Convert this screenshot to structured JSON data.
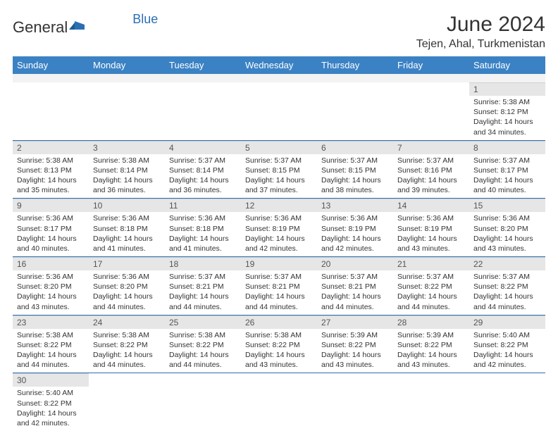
{
  "logo": {
    "general": "General",
    "blue": "Blue"
  },
  "title": "June 2024",
  "location": "Tejen, Ahal, Turkmenistan",
  "colors": {
    "header_bg": "#3b82c4",
    "rule": "#2b6fb3",
    "daynum_bg": "#e6e6e6"
  },
  "weekdays": [
    "Sunday",
    "Monday",
    "Tuesday",
    "Wednesday",
    "Thursday",
    "Friday",
    "Saturday"
  ],
  "weeks": [
    [
      null,
      null,
      null,
      null,
      null,
      null,
      {
        "n": "1",
        "sr": "5:38 AM",
        "ss": "8:12 PM",
        "dl": "14 hours and 34 minutes."
      }
    ],
    [
      {
        "n": "2",
        "sr": "5:38 AM",
        "ss": "8:13 PM",
        "dl": "14 hours and 35 minutes."
      },
      {
        "n": "3",
        "sr": "5:38 AM",
        "ss": "8:14 PM",
        "dl": "14 hours and 36 minutes."
      },
      {
        "n": "4",
        "sr": "5:37 AM",
        "ss": "8:14 PM",
        "dl": "14 hours and 36 minutes."
      },
      {
        "n": "5",
        "sr": "5:37 AM",
        "ss": "8:15 PM",
        "dl": "14 hours and 37 minutes."
      },
      {
        "n": "6",
        "sr": "5:37 AM",
        "ss": "8:15 PM",
        "dl": "14 hours and 38 minutes."
      },
      {
        "n": "7",
        "sr": "5:37 AM",
        "ss": "8:16 PM",
        "dl": "14 hours and 39 minutes."
      },
      {
        "n": "8",
        "sr": "5:37 AM",
        "ss": "8:17 PM",
        "dl": "14 hours and 40 minutes."
      }
    ],
    [
      {
        "n": "9",
        "sr": "5:36 AM",
        "ss": "8:17 PM",
        "dl": "14 hours and 40 minutes."
      },
      {
        "n": "10",
        "sr": "5:36 AM",
        "ss": "8:18 PM",
        "dl": "14 hours and 41 minutes."
      },
      {
        "n": "11",
        "sr": "5:36 AM",
        "ss": "8:18 PM",
        "dl": "14 hours and 41 minutes."
      },
      {
        "n": "12",
        "sr": "5:36 AM",
        "ss": "8:19 PM",
        "dl": "14 hours and 42 minutes."
      },
      {
        "n": "13",
        "sr": "5:36 AM",
        "ss": "8:19 PM",
        "dl": "14 hours and 42 minutes."
      },
      {
        "n": "14",
        "sr": "5:36 AM",
        "ss": "8:19 PM",
        "dl": "14 hours and 43 minutes."
      },
      {
        "n": "15",
        "sr": "5:36 AM",
        "ss": "8:20 PM",
        "dl": "14 hours and 43 minutes."
      }
    ],
    [
      {
        "n": "16",
        "sr": "5:36 AM",
        "ss": "8:20 PM",
        "dl": "14 hours and 43 minutes."
      },
      {
        "n": "17",
        "sr": "5:36 AM",
        "ss": "8:20 PM",
        "dl": "14 hours and 44 minutes."
      },
      {
        "n": "18",
        "sr": "5:37 AM",
        "ss": "8:21 PM",
        "dl": "14 hours and 44 minutes."
      },
      {
        "n": "19",
        "sr": "5:37 AM",
        "ss": "8:21 PM",
        "dl": "14 hours and 44 minutes."
      },
      {
        "n": "20",
        "sr": "5:37 AM",
        "ss": "8:21 PM",
        "dl": "14 hours and 44 minutes."
      },
      {
        "n": "21",
        "sr": "5:37 AM",
        "ss": "8:22 PM",
        "dl": "14 hours and 44 minutes."
      },
      {
        "n": "22",
        "sr": "5:37 AM",
        "ss": "8:22 PM",
        "dl": "14 hours and 44 minutes."
      }
    ],
    [
      {
        "n": "23",
        "sr": "5:38 AM",
        "ss": "8:22 PM",
        "dl": "14 hours and 44 minutes."
      },
      {
        "n": "24",
        "sr": "5:38 AM",
        "ss": "8:22 PM",
        "dl": "14 hours and 44 minutes."
      },
      {
        "n": "25",
        "sr": "5:38 AM",
        "ss": "8:22 PM",
        "dl": "14 hours and 44 minutes."
      },
      {
        "n": "26",
        "sr": "5:38 AM",
        "ss": "8:22 PM",
        "dl": "14 hours and 43 minutes."
      },
      {
        "n": "27",
        "sr": "5:39 AM",
        "ss": "8:22 PM",
        "dl": "14 hours and 43 minutes."
      },
      {
        "n": "28",
        "sr": "5:39 AM",
        "ss": "8:22 PM",
        "dl": "14 hours and 43 minutes."
      },
      {
        "n": "29",
        "sr": "5:40 AM",
        "ss": "8:22 PM",
        "dl": "14 hours and 42 minutes."
      }
    ],
    [
      {
        "n": "30",
        "sr": "5:40 AM",
        "ss": "8:22 PM",
        "dl": "14 hours and 42 minutes."
      },
      null,
      null,
      null,
      null,
      null,
      null
    ]
  ],
  "labels": {
    "sunrise": "Sunrise: ",
    "sunset": "Sunset: ",
    "daylight": "Daylight: "
  }
}
